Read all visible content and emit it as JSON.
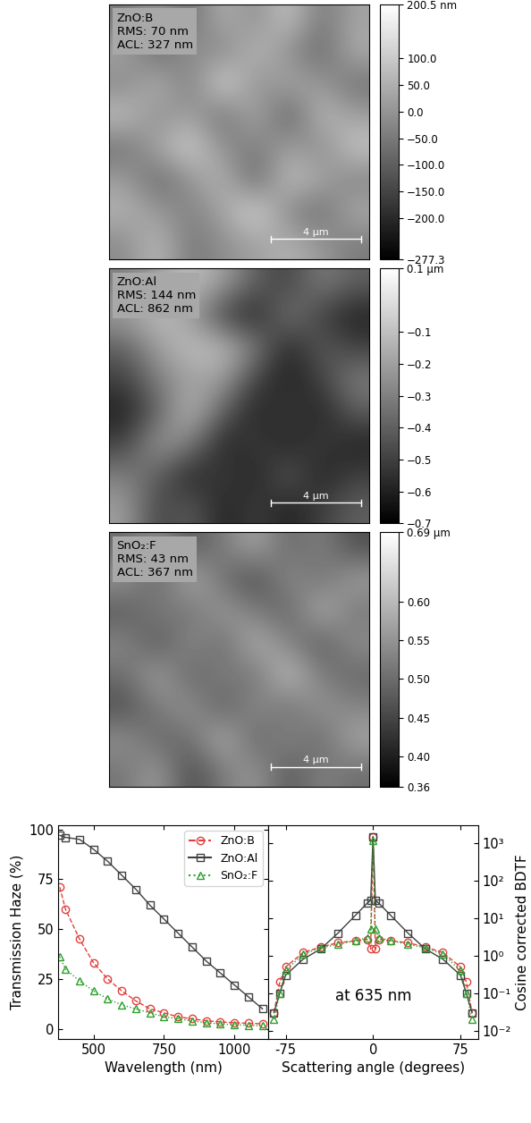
{
  "chart_data": [
    {
      "type": "heatmap",
      "annotations": [
        "ZnO:B",
        "RMS: 70 nm",
        "ACL: 327 nm"
      ],
      "scale_bar": {
        "label": "4 µm",
        "length": 4
      },
      "xlim": [
        0,
        11.5
      ],
      "ylim": [
        0,
        11.5
      ],
      "tick_labels": false,
      "cells": [
        [
          -50,
          20,
          -80,
          60,
          -20,
          100,
          -60,
          30
        ],
        [
          40,
          -100,
          10,
          -40,
          80,
          -10,
          -90,
          50
        ],
        [
          -30,
          70,
          -60,
          150,
          -20,
          40,
          10,
          -70
        ],
        [
          90,
          -20,
          30,
          -80,
          60,
          -120,
          80,
          20
        ],
        [
          -70,
          40,
          120,
          -10,
          -50,
          30,
          -30,
          100
        ],
        [
          20,
          -90,
          0,
          70,
          -100,
          90,
          40,
          -40
        ],
        [
          60,
          10,
          -40,
          30,
          140,
          -30,
          -80,
          50
        ],
        [
          -20,
          80,
          -60,
          -10,
          20,
          60,
          10,
          -50
        ]
      ],
      "colorbar": {
        "range": [
          -277.3,
          200.5
        ],
        "ticks": [
          {
            "value": 200.5,
            "label": "200.5 nm"
          },
          {
            "value": 100,
            "label": "100.0"
          },
          {
            "value": 50,
            "label": "50.0"
          },
          {
            "value": 0,
            "label": "0.0"
          },
          {
            "value": -50,
            "label": "−50.0"
          },
          {
            "value": -100,
            "label": "−100.0"
          },
          {
            "value": -150,
            "label": "−150.0"
          },
          {
            "value": -200,
            "label": "−200.0"
          },
          {
            "value": -277.3,
            "label": "−277.3"
          }
        ]
      }
    },
    {
      "type": "heatmap",
      "annotations": [
        "ZnO:Al",
        "RMS: 144 nm",
        "ACL: 862 nm"
      ],
      "scale_bar": {
        "label": "4 µm",
        "length": 4
      },
      "xlim": [
        0,
        11.5
      ],
      "ylim": [
        0,
        11.5
      ],
      "tick_labels": false,
      "cells": [
        [
          -0.3,
          -0.2,
          -0.1,
          -0.2,
          -0.4,
          -0.5,
          -0.3,
          -0.4
        ],
        [
          -0.2,
          -0.1,
          -0.2,
          -0.5,
          -0.6,
          -0.3,
          -0.5,
          -0.6
        ],
        [
          -0.4,
          -0.2,
          -0.1,
          -0.1,
          -0.3,
          -0.6,
          -0.4,
          -0.5
        ],
        [
          -0.5,
          -0.3,
          -0.2,
          -0.2,
          -0.5,
          -0.6,
          -0.5,
          -0.3
        ],
        [
          -0.6,
          -0.4,
          -0.1,
          -0.4,
          -0.6,
          -0.5,
          -0.6,
          -0.4
        ],
        [
          -0.5,
          -0.2,
          -0.3,
          -0.6,
          -0.5,
          -0.6,
          -0.5,
          -0.6
        ],
        [
          -0.3,
          -0.4,
          -0.6,
          -0.5,
          -0.6,
          -0.4,
          -0.6,
          -0.5
        ],
        [
          -0.2,
          -0.5,
          -0.4,
          -0.6,
          -0.5,
          -0.6,
          -0.5,
          -0.4
        ]
      ],
      "colorbar": {
        "range": [
          -0.7,
          0.1
        ],
        "ticks": [
          {
            "value": 0.1,
            "label": "0.1 µm"
          },
          {
            "value": -0.1,
            "label": "−0.1"
          },
          {
            "value": -0.2,
            "label": "−0.2"
          },
          {
            "value": -0.3,
            "label": "−0.3"
          },
          {
            "value": -0.4,
            "label": "−0.4"
          },
          {
            "value": -0.5,
            "label": "−0.5"
          },
          {
            "value": -0.6,
            "label": "−0.6"
          },
          {
            "value": -0.7,
            "label": "−0.7"
          }
        ]
      }
    },
    {
      "type": "heatmap",
      "annotations": [
        "SnO₂:F",
        "RMS: 43 nm",
        "ACL: 367 nm"
      ],
      "scale_bar": {
        "label": "4 µm",
        "length": 4
      },
      "xlim": [
        0,
        11.5
      ],
      "ylim": [
        0,
        11.5
      ],
      "tick_labels": false,
      "cells": [
        [
          0.5,
          0.55,
          0.47,
          0.52,
          0.58,
          0.49,
          0.53,
          0.46
        ],
        [
          0.56,
          0.48,
          0.6,
          0.5,
          0.45,
          0.55,
          0.5,
          0.57
        ],
        [
          0.47,
          0.53,
          0.5,
          0.57,
          0.52,
          0.48,
          0.6,
          0.51
        ],
        [
          0.54,
          0.46,
          0.55,
          0.49,
          0.6,
          0.53,
          0.47,
          0.55
        ],
        [
          0.5,
          0.58,
          0.48,
          0.53,
          0.5,
          0.62,
          0.52,
          0.49
        ],
        [
          0.46,
          0.52,
          0.56,
          0.47,
          0.55,
          0.5,
          0.56,
          0.53
        ],
        [
          0.55,
          0.49,
          0.5,
          0.6,
          0.48,
          0.54,
          0.49,
          0.58
        ],
        [
          0.51,
          0.57,
          0.45,
          0.52,
          0.56,
          0.47,
          0.53,
          0.5
        ]
      ],
      "colorbar": {
        "range": [
          0.36,
          0.69
        ],
        "ticks": [
          {
            "value": 0.69,
            "label": "0.69 µm"
          },
          {
            "value": 0.6,
            "label": "0.60"
          },
          {
            "value": 0.55,
            "label": "0.55"
          },
          {
            "value": 0.5,
            "label": "0.50"
          },
          {
            "value": 0.45,
            "label": "0.45"
          },
          {
            "value": 0.4,
            "label": "0.40"
          },
          {
            "value": 0.36,
            "label": "0.36"
          }
        ]
      }
    },
    {
      "type": "line",
      "x_label": "Wavelength (nm)",
      "y_label": "Transmission Haze (%)",
      "xlim": [
        375,
        1120
      ],
      "ylim": [
        -5,
        102
      ],
      "xticks": [
        500,
        750,
        1000
      ],
      "yticks": [
        0,
        25,
        50,
        75,
        100
      ],
      "legend": "upper right",
      "x": [
        380,
        400,
        450,
        500,
        550,
        600,
        650,
        700,
        750,
        800,
        850,
        900,
        950,
        1000,
        1050,
        1100
      ],
      "series": [
        {
          "name": "ZnO:B",
          "color": "#e0403c",
          "marker": "o",
          "line_style": "dashed",
          "values": [
            71,
            60,
            45,
            33,
            25,
            19,
            14,
            10,
            8,
            6,
            5,
            4,
            3.5,
            3,
            2.8,
            2.5
          ]
        },
        {
          "name": "ZnO:Al",
          "color": "#404040",
          "marker": "s",
          "line_style": "solid",
          "values": [
            97,
            96,
            95,
            90,
            84,
            77,
            70,
            62,
            55,
            48,
            41,
            34,
            28,
            22,
            16,
            10
          ]
        },
        {
          "name": "SnO₂:F",
          "color": "#2ca02c",
          "marker": "^",
          "line_style": "dotted",
          "values": [
            36,
            30,
            24,
            19,
            15,
            12,
            10,
            8,
            6,
            5,
            4,
            3,
            2.5,
            2,
            1.8,
            1.5
          ]
        }
      ]
    },
    {
      "type": "line",
      "log": "y",
      "x_label": "Scattering angle (degrees)",
      "y_label": "Cosine corrected BDTF",
      "annotations": [
        "at 635 nm"
      ],
      "xlim": [
        -90,
        90
      ],
      "ylim": [
        0.006,
        3000
      ],
      "xticks": [
        -75,
        0,
        75
      ],
      "yticks": [
        {
          "value": 0.01,
          "label": "10⁻²"
        },
        {
          "value": 0.1,
          "label": "10⁻¹"
        },
        {
          "value": 1,
          "label": "10⁰"
        },
        {
          "value": 10,
          "label": "10¹"
        },
        {
          "value": 100,
          "label": "10²"
        },
        {
          "value": 1000,
          "label": "10³"
        }
      ],
      "x": [
        -85,
        -80,
        -75,
        -60,
        -45,
        -30,
        -15,
        -5,
        -2,
        0,
        2,
        5,
        15,
        30,
        45,
        60,
        75,
        80,
        85
      ],
      "series": [
        {
          "name": "ZnO:B",
          "color": "#e0403c",
          "marker": "o",
          "line_style": "dashed",
          "values": [
            0.03,
            0.2,
            0.5,
            1.2,
            1.7,
            2.2,
            2.5,
            2.7,
            1.5,
            1500,
            1.5,
            2.7,
            2.5,
            2.2,
            1.7,
            1.2,
            0.5,
            0.2,
            0.03
          ]
        },
        {
          "name": "ZnO:Al",
          "color": "#404040",
          "marker": "s",
          "line_style": "solid",
          "values": [
            0.03,
            0.1,
            0.3,
            0.8,
            1.5,
            4,
            12,
            25,
            30,
            1500,
            30,
            25,
            12,
            4,
            1.5,
            0.8,
            0.3,
            0.1,
            0.03
          ]
        },
        {
          "name": "SnO₂:F",
          "color": "#2ca02c",
          "marker": "^",
          "line_style": "dotted",
          "values": [
            0.02,
            0.1,
            0.4,
            1.1,
            1.6,
            2.0,
            2.5,
            3,
            5,
            1200,
            5,
            3,
            2.5,
            2.0,
            1.6,
            1.1,
            0.4,
            0.1,
            0.02
          ]
        }
      ]
    }
  ]
}
